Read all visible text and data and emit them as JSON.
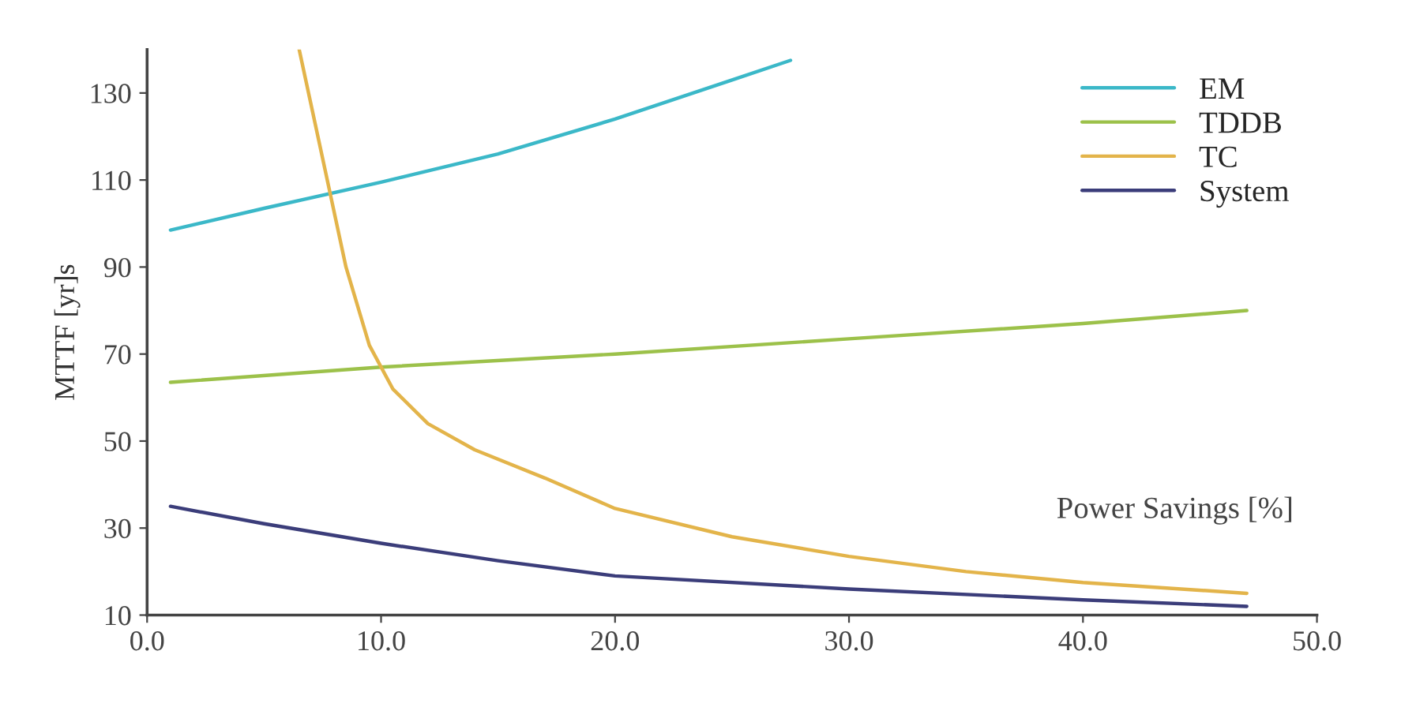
{
  "chart_data": {
    "type": "line",
    "xlabel": "Power Savings [%]",
    "ylabel": "MTTF [yr]s",
    "xlim": [
      0,
      50
    ],
    "ylim": [
      10,
      140
    ],
    "xticks": [
      {
        "value": 0,
        "label": "0.0"
      },
      {
        "value": 10,
        "label": "10.0"
      },
      {
        "value": 20,
        "label": "20.0"
      },
      {
        "value": 30,
        "label": "30.0"
      },
      {
        "value": 40,
        "label": "40.0"
      },
      {
        "value": 50,
        "label": "50.0"
      }
    ],
    "yticks": [
      10,
      30,
      50,
      70,
      90,
      110,
      130
    ],
    "grid": false,
    "legend": "top right",
    "series": [
      {
        "name": "EM",
        "color": "#3bb8c8",
        "x": [
          1,
          5,
          10,
          15,
          20,
          25,
          27.5
        ],
        "values": [
          98.5,
          103.5,
          109.5,
          116,
          124,
          133,
          137.5
        ]
      },
      {
        "name": "TDDB",
        "color": "#9cc14a",
        "x": [
          1,
          10,
          20,
          30,
          40,
          47
        ],
        "values": [
          63.5,
          67,
          70,
          73.5,
          77,
          80
        ]
      },
      {
        "name": "TC",
        "color": "#e3b44a",
        "x": [
          6.5,
          7.5,
          8.5,
          9.5,
          10.5,
          12,
          14,
          17,
          20,
          25,
          30,
          35,
          40,
          47
        ],
        "values": [
          140,
          115,
          90,
          72,
          62,
          54,
          48,
          41.5,
          34.5,
          28,
          23.5,
          20,
          17.5,
          15
        ]
      },
      {
        "name": "System",
        "color": "#3b3d7a",
        "x": [
          1,
          5,
          10,
          15,
          20,
          30,
          40,
          47
        ],
        "values": [
          35,
          31,
          26.5,
          22.5,
          19,
          16,
          13.5,
          12
        ]
      }
    ]
  }
}
